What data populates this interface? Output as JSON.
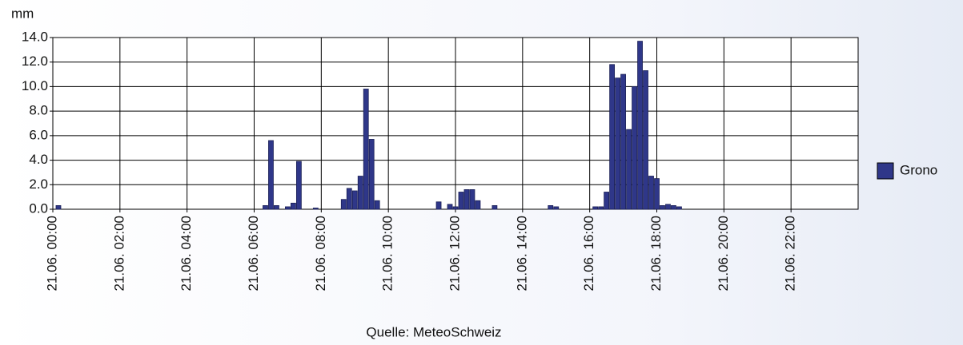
{
  "chart_data": {
    "type": "bar",
    "y_label": "mm",
    "source": "Quelle: MeteoSchweiz",
    "series": [
      {
        "name": "Grono",
        "color": "#2f3789",
        "x": [
          10,
          380,
          390,
          400,
          420,
          430,
          440,
          470,
          520,
          530,
          540,
          550,
          560,
          570,
          580,
          690,
          710,
          720,
          730,
          740,
          750,
          760,
          790,
          890,
          900,
          970,
          980,
          990,
          1000,
          1010,
          1020,
          1030,
          1040,
          1050,
          1060,
          1070,
          1080,
          1090,
          1100,
          1110,
          1120
        ],
        "values": [
          0.3,
          0.3,
          5.6,
          0.3,
          0.2,
          0.5,
          3.9,
          0.1,
          0.8,
          1.7,
          1.5,
          2.7,
          9.8,
          5.7,
          0.7,
          0.6,
          0.4,
          0.2,
          1.4,
          1.6,
          1.6,
          0.7,
          0.3,
          0.3,
          0.2,
          0.2,
          0.2,
          1.4,
          11.8,
          10.7,
          11.0,
          6.5,
          10.0,
          13.7,
          11.3,
          2.7,
          2.5,
          0.3,
          0.4,
          0.3,
          0.2
        ]
      }
    ],
    "xlim": [
      0,
      1440
    ],
    "xticks": [
      {
        "value": 0,
        "label": "21.06. 00:00"
      },
      {
        "value": 120,
        "label": "21.06. 02:00"
      },
      {
        "value": 240,
        "label": "21.06. 04:00"
      },
      {
        "value": 360,
        "label": "21.06. 06:00"
      },
      {
        "value": 480,
        "label": "21.06. 08:00"
      },
      {
        "value": 600,
        "label": "21.06. 10:00"
      },
      {
        "value": 720,
        "label": "21.06. 12:00"
      },
      {
        "value": 840,
        "label": "21.06. 14:00"
      },
      {
        "value": 960,
        "label": "21.06. 16:00"
      },
      {
        "value": 1080,
        "label": "21.06. 18:00"
      },
      {
        "value": 1200,
        "label": "21.06. 20:00"
      },
      {
        "value": 1320,
        "label": "21.06. 22:00"
      }
    ],
    "ylim": [
      0,
      14
    ],
    "yticks": [
      {
        "value": 0,
        "label": "0.0"
      },
      {
        "value": 2,
        "label": "2.0"
      },
      {
        "value": 4,
        "label": "4.0"
      },
      {
        "value": 6,
        "label": "6.0"
      },
      {
        "value": 8,
        "label": "8.0"
      },
      {
        "value": 10,
        "label": "10.0"
      },
      {
        "value": 12,
        "label": "12.0"
      },
      {
        "value": 14,
        "label": "14.0"
      }
    ],
    "grid": true,
    "legend": "right"
  }
}
